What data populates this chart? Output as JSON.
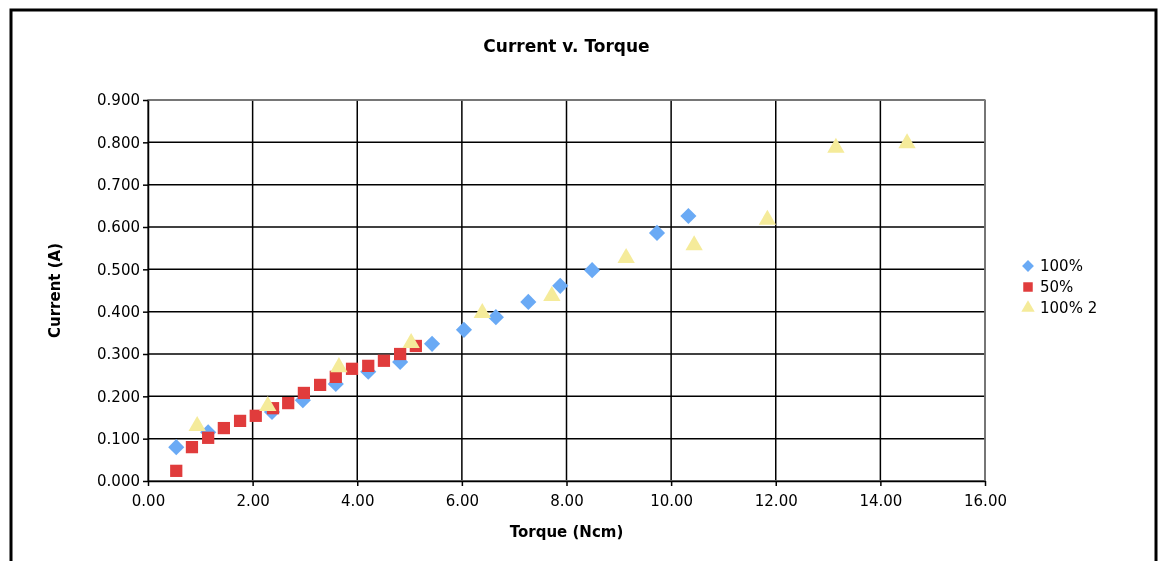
{
  "chart_data": {
    "type": "scatter",
    "title": "Current v. Torque",
    "xlabel": "Torque (Ncm)",
    "ylabel": "Current (A)",
    "xlim": [
      0,
      16
    ],
    "xticks": [
      {
        "value": 0,
        "label": "0.00"
      },
      {
        "value": 2,
        "label": "2.00"
      },
      {
        "value": 4,
        "label": "4.00"
      },
      {
        "value": 6,
        "label": "6.00"
      },
      {
        "value": 8,
        "label": "8.00"
      },
      {
        "value": 10,
        "label": "10.00"
      },
      {
        "value": 12,
        "label": "12.00"
      },
      {
        "value": 14,
        "label": "14.00"
      },
      {
        "value": 16,
        "label": "16.00"
      }
    ],
    "ylim": [
      0,
      0.9
    ],
    "yticks": [
      {
        "value": 0,
        "label": "0.000"
      },
      {
        "value": 0.1,
        "label": "0.100"
      },
      {
        "value": 0.2,
        "label": "0.200"
      },
      {
        "value": 0.3,
        "label": "0.300"
      },
      {
        "value": 0.4,
        "label": "0.400"
      },
      {
        "value": 0.5,
        "label": "0.500"
      },
      {
        "value": 0.6,
        "label": "0.600"
      },
      {
        "value": 0.7,
        "label": "0.700"
      },
      {
        "value": 0.8,
        "label": "0.800"
      },
      {
        "value": 0.9,
        "label": "0.900"
      }
    ],
    "grid": true,
    "legend": "right",
    "series": [
      {
        "name": "100%",
        "color": "#6aaaf5",
        "marker": "diamond",
        "x": [
          0.54,
          1.15,
          2.37,
          2.96,
          3.59,
          4.21,
          4.82,
          5.43,
          6.04,
          6.65,
          7.27,
          7.88,
          8.49,
          9.73,
          10.33
        ],
        "values": [
          0.08,
          0.115,
          0.163,
          0.191,
          0.229,
          0.258,
          0.281,
          0.324,
          0.357,
          0.387,
          0.423,
          0.461,
          0.498,
          0.586,
          0.626
        ]
      },
      {
        "name": "50%",
        "color": "#e03c3c",
        "marker": "square",
        "x": [
          0.54,
          0.84,
          1.15,
          1.45,
          1.76,
          2.06,
          2.39,
          2.68,
          2.98,
          3.29,
          3.59,
          3.9,
          4.21,
          4.51,
          4.82,
          5.12
        ],
        "values": [
          0.024,
          0.08,
          0.102,
          0.125,
          0.142,
          0.154,
          0.172,
          0.184,
          0.208,
          0.227,
          0.246,
          0.265,
          0.272,
          0.284,
          0.3,
          0.319
        ]
      },
      {
        "name": "100% 2",
        "color": "#f5eb9a",
        "marker": "triangle",
        "x": [
          0.94,
          2.29,
          3.65,
          5.03,
          6.39,
          7.72,
          9.14,
          10.44,
          11.84,
          13.15,
          14.51
        ],
        "values": [
          0.13,
          0.177,
          0.269,
          0.326,
          0.397,
          0.437,
          0.527,
          0.557,
          0.617,
          0.787,
          0.798
        ]
      }
    ]
  }
}
